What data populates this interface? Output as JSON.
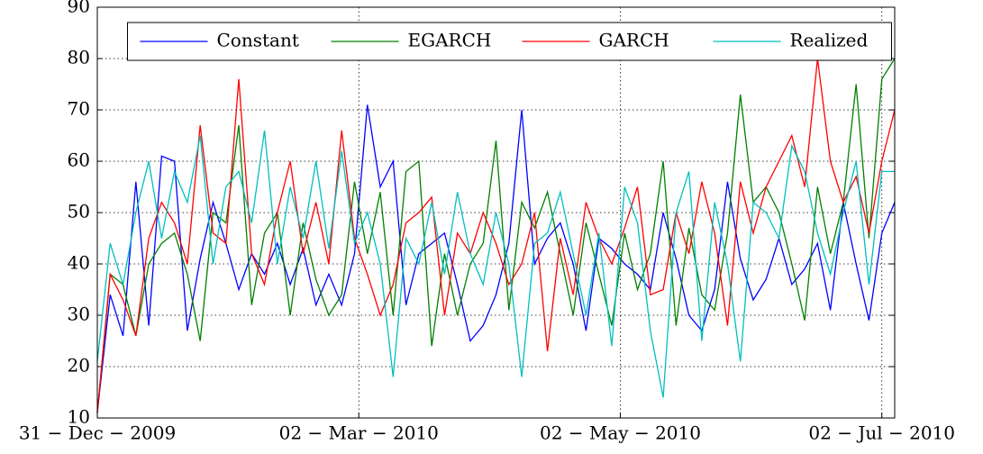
{
  "chart_data": {
    "type": "line",
    "x": [
      0,
      3,
      6,
      9,
      12,
      15,
      18,
      21,
      24,
      27,
      30,
      33,
      36,
      39,
      42,
      45,
      48,
      51,
      54,
      57,
      60,
      63,
      66,
      69,
      72,
      75,
      78,
      81,
      84,
      87,
      90,
      93,
      96,
      99,
      102,
      105,
      108,
      111,
      114,
      117,
      120,
      123,
      126,
      129,
      132,
      135,
      138,
      141,
      144,
      147,
      150,
      153,
      156,
      159,
      162,
      165,
      168,
      171,
      174,
      177,
      180,
      183,
      186
    ],
    "xlim": [
      0,
      186
    ],
    "xticks": [
      {
        "value": 0,
        "label": "31 − Dec − 2009"
      },
      {
        "value": 61,
        "label": "02 − Mar − 2010"
      },
      {
        "value": 122,
        "label": "02 − May − 2010"
      },
      {
        "value": 183,
        "label": "02 − Jul − 2010"
      }
    ],
    "ylim": [
      10,
      90
    ],
    "yticks": [
      10,
      20,
      30,
      40,
      50,
      60,
      70,
      80,
      90
    ],
    "grid": true,
    "legend": "upper center",
    "series": [
      {
        "name": "Constant",
        "color": "#0000ff",
        "values": [
          11,
          34,
          26,
          56,
          28,
          61,
          60,
          27,
          41,
          52,
          44,
          35,
          42,
          38,
          44,
          36,
          43,
          32,
          38,
          32,
          42,
          71,
          55,
          60,
          32,
          42,
          44,
          46,
          36,
          25,
          28,
          34,
          44,
          70,
          40,
          45,
          48,
          40,
          27,
          45,
          43,
          40,
          38,
          35,
          50,
          41,
          30,
          27,
          35,
          56,
          41,
          33,
          37,
          45,
          36,
          39,
          44,
          31,
          52,
          40,
          29,
          46,
          52
        ]
      },
      {
        "name": "EGARCH",
        "color": "#008000",
        "values": [
          11,
          38,
          36,
          26,
          40,
          44,
          46,
          38,
          25,
          50,
          48,
          67,
          32,
          46,
          50,
          30,
          48,
          37,
          30,
          34,
          56,
          42,
          54,
          30,
          58,
          60,
          24,
          42,
          30,
          40,
          44,
          64,
          31,
          52,
          47,
          54,
          42,
          30,
          48,
          38,
          28,
          46,
          35,
          42,
          60,
          28,
          47,
          34,
          31,
          46,
          73,
          52,
          55,
          50,
          40,
          29,
          55,
          42,
          52,
          75,
          45,
          76,
          80
        ]
      },
      {
        "name": "GARCH",
        "color": "#ff0000",
        "values": [
          11,
          38,
          33,
          26,
          45,
          52,
          48,
          40,
          67,
          46,
          44,
          76,
          42,
          36,
          50,
          60,
          42,
          52,
          40,
          66,
          45,
          38,
          30,
          36,
          48,
          50,
          53,
          30,
          46,
          42,
          50,
          44,
          36,
          40,
          50,
          23,
          45,
          34,
          52,
          45,
          40,
          47,
          55,
          34,
          35,
          50,
          42,
          56,
          46,
          28,
          56,
          46,
          55,
          60,
          65,
          55,
          80,
          60,
          52,
          57,
          46,
          60,
          70
        ]
      },
      {
        "name": "Realized",
        "color": "#00bfbf",
        "values": [
          21,
          44,
          36,
          50,
          60,
          45,
          58,
          52,
          65,
          40,
          55,
          58,
          48,
          66,
          40,
          55,
          45,
          60,
          43,
          62,
          44,
          50,
          40,
          18,
          45,
          40,
          52,
          38,
          54,
          42,
          36,
          50,
          40,
          18,
          44,
          46,
          54,
          42,
          30,
          46,
          24,
          55,
          48,
          27,
          14,
          50,
          58,
          25,
          52,
          40,
          21,
          52,
          50,
          45,
          63,
          58,
          46,
          38,
          50,
          60,
          36,
          58,
          58
        ]
      }
    ]
  }
}
